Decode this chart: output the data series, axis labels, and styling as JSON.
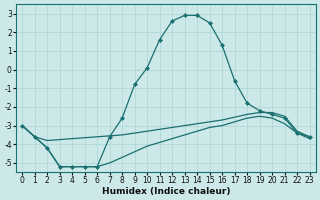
{
  "xlabel": "Humidex (Indice chaleur)",
  "background_color": "#cce8e8",
  "grid_color": "#b0d8d8",
  "line_color": "#1a7070",
  "xlim": [
    -0.5,
    23.5
  ],
  "ylim": [
    -5.5,
    3.5
  ],
  "yticks": [
    -5,
    -4,
    -3,
    -2,
    -1,
    0,
    1,
    2,
    3
  ],
  "xticks": [
    0,
    1,
    2,
    3,
    4,
    5,
    6,
    7,
    8,
    9,
    10,
    11,
    12,
    13,
    14,
    15,
    16,
    17,
    18,
    19,
    20,
    21,
    22,
    23
  ],
  "line1_x": [
    0,
    1,
    2,
    3,
    4,
    5,
    6,
    7,
    8,
    9,
    10,
    11,
    12,
    13,
    14,
    15,
    16,
    17,
    18,
    19,
    20,
    21,
    22,
    23
  ],
  "line1_y": [
    -3.0,
    -3.6,
    -4.2,
    -5.2,
    -5.2,
    -5.2,
    -5.2,
    -3.6,
    -2.6,
    -0.8,
    0.1,
    1.6,
    2.6,
    2.9,
    2.9,
    2.5,
    1.3,
    -0.6,
    -1.8,
    -2.2,
    -2.4,
    -2.6,
    -3.4,
    -3.6
  ],
  "line2_x": [
    0,
    1,
    2,
    3,
    4,
    5,
    6,
    7,
    8,
    9,
    10,
    11,
    12,
    13,
    14,
    15,
    16,
    17,
    18,
    19,
    20,
    21,
    22,
    23
  ],
  "line2_y": [
    -3.0,
    -3.6,
    -3.8,
    -3.75,
    -3.7,
    -3.65,
    -3.6,
    -3.55,
    -3.5,
    -3.4,
    -3.3,
    -3.2,
    -3.1,
    -3.0,
    -2.9,
    -2.8,
    -2.7,
    -2.55,
    -2.4,
    -2.3,
    -2.3,
    -2.5,
    -3.3,
    -3.6
  ],
  "line3_x": [
    0,
    1,
    2,
    3,
    4,
    5,
    6,
    7,
    8,
    9,
    10,
    11,
    12,
    13,
    14,
    15,
    16,
    17,
    18,
    19,
    20,
    21,
    22,
    23
  ],
  "line3_y": [
    -3.0,
    -3.6,
    -4.2,
    -5.2,
    -5.2,
    -5.2,
    -5.2,
    -5.0,
    -4.7,
    -4.4,
    -4.1,
    -3.9,
    -3.7,
    -3.5,
    -3.3,
    -3.1,
    -3.0,
    -2.8,
    -2.6,
    -2.5,
    -2.6,
    -2.9,
    -3.4,
    -3.7
  ],
  "marker": "D",
  "markersize": 2.0,
  "linewidth": 0.9,
  "tick_fontsize": 5.5,
  "xlabel_fontsize": 6.5
}
